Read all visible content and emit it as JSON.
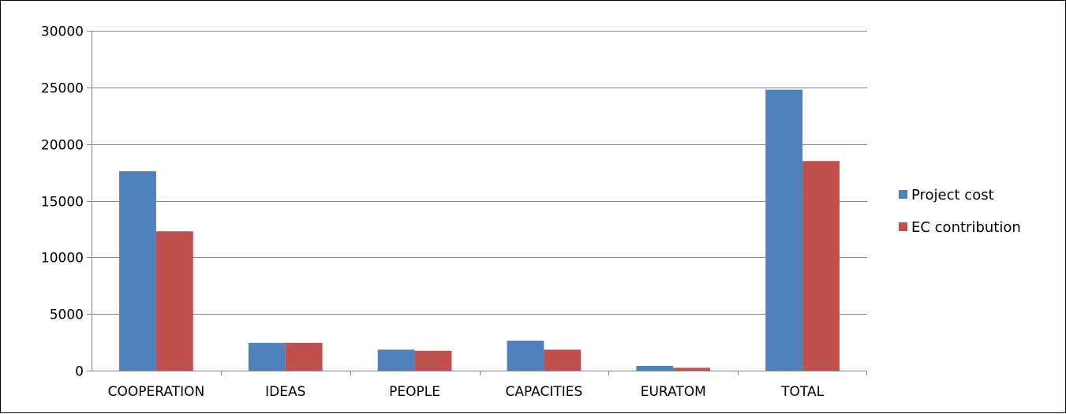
{
  "chart_data": {
    "type": "bar",
    "title": "",
    "xlabel": "",
    "ylabel": "",
    "categories": [
      "COOPERATION",
      "IDEAS",
      "PEOPLE",
      "CAPACITIES",
      "EURATOM",
      "TOTAL"
    ],
    "series": [
      {
        "name": "Project cost",
        "color": "#4F81BD",
        "values": [
          17600,
          2450,
          1850,
          2650,
          420,
          24800
        ]
      },
      {
        "name": "EC contribution",
        "color": "#C0504D",
        "values": [
          12300,
          2450,
          1750,
          1850,
          250,
          18500
        ]
      }
    ],
    "ylim": [
      0,
      30000
    ],
    "yticks": [
      0,
      5000,
      10000,
      15000,
      20000,
      25000,
      30000
    ],
    "grid": true,
    "legend_position": "right"
  }
}
